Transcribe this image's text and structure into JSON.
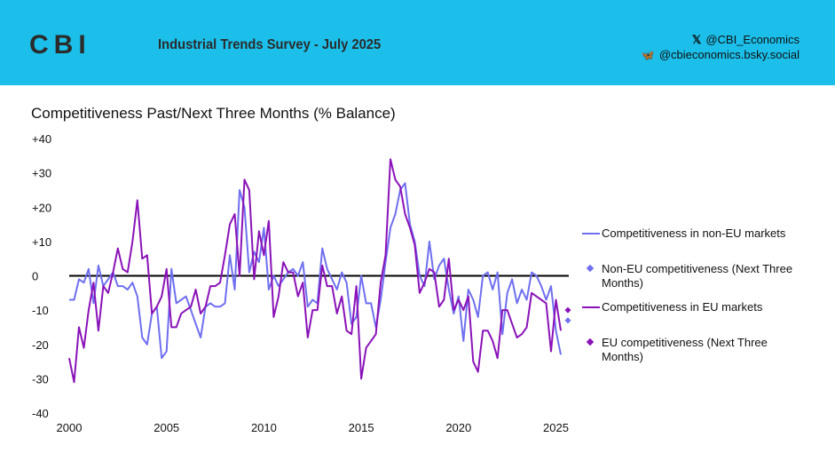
{
  "header": {
    "logo": "CBI",
    "survey_title": "Industrial Trends Survey - July 2025",
    "x_handle": "@CBI_Economics",
    "bsky_handle": "@cbieconomics.bsky.social",
    "x_icon": "𝕏",
    "bsky_icon": "🦋"
  },
  "colors": {
    "header_bg": "#1bbfea",
    "non_eu": "#6f6ff0",
    "eu": "#8a12b8",
    "zero_line": "#000000"
  },
  "chart_data": {
    "type": "line",
    "title": "Competitiveness Past/Next Three Months (% Balance)",
    "xlabel": "",
    "ylabel": "",
    "xlim": [
      2000,
      2026.3
    ],
    "ylim": [
      -40,
      40
    ],
    "x_ticks": [
      "2000",
      "2005",
      "2010",
      "2015",
      "2020",
      "2025"
    ],
    "y_ticks": [
      "+40",
      "+30",
      "+20",
      "+10",
      "0",
      "-10",
      "-20",
      "-30",
      "-40"
    ],
    "start_year": 2000,
    "step": 0.25,
    "series": [
      {
        "name": "Competitiveness in non-EU markets",
        "kind": "line",
        "values": [
          -7,
          -7,
          -1,
          -2,
          2,
          -8,
          3,
          -3,
          -1,
          1,
          -3,
          -3,
          -4,
          -2,
          -6,
          -18,
          -20,
          -11,
          -9,
          -24,
          -22,
          2,
          -8,
          -7,
          -6,
          -10,
          -14,
          -18,
          -9,
          -8,
          -9,
          -9,
          -8,
          6,
          -4,
          25,
          20,
          1,
          7,
          4,
          14,
          -4,
          0,
          -3,
          -1,
          1,
          2,
          0,
          4,
          -9,
          -7,
          -8,
          8,
          2,
          -1,
          -4,
          1,
          -2,
          -14,
          -12,
          0,
          -8,
          -8,
          -15,
          -7,
          4,
          14,
          18,
          25,
          27,
          15,
          10,
          0,
          -3,
          10,
          -1,
          3,
          5,
          -4,
          -11,
          -6,
          -19,
          -4,
          -7,
          -12,
          0,
          1,
          -4,
          1,
          -17,
          -5,
          -1,
          -8,
          -4,
          -7,
          1,
          0,
          -3,
          -7,
          -3,
          -16,
          -23
        ],
        "next": -13
      },
      {
        "name": "Competitiveness in EU markets",
        "kind": "line",
        "values": [
          -24,
          -31,
          -15,
          -21,
          -10,
          -2,
          -16,
          -3,
          -5,
          1,
          8,
          2,
          1,
          10,
          22,
          5,
          6,
          -11,
          -9,
          -6,
          2,
          -15,
          -15,
          -11,
          -10,
          -9,
          -4,
          -11,
          -9,
          -3,
          -3,
          -2,
          6,
          15,
          18,
          0,
          28,
          25,
          -1,
          13,
          6,
          16,
          -12,
          -6,
          4,
          1,
          1,
          -6,
          -2,
          -18,
          -10,
          -10,
          3,
          -3,
          -3,
          -11,
          -6,
          -16,
          -17,
          -3,
          -30,
          -21,
          -19,
          -17,
          -2,
          6,
          34,
          28,
          26,
          18,
          14,
          9,
          -5,
          -2,
          2,
          1,
          -9,
          -7,
          5,
          -10,
          -7,
          -10,
          -6,
          -25,
          -28,
          -16,
          -16,
          -19,
          -24,
          -10,
          -10,
          -14,
          -18,
          -17,
          -15,
          -5,
          -6,
          -7,
          -8,
          -22,
          -7,
          -16
        ],
        "next": -10
      }
    ],
    "legend": [
      {
        "label": "Competitiveness in non-EU markets",
        "type": "line",
        "color": "#6f6ff0"
      },
      {
        "label": "Non-EU competitiveness (Next Three Months)",
        "type": "marker",
        "color": "#6f6ff0"
      },
      {
        "label": "Competitiveness in EU markets",
        "type": "line",
        "color": "#8a12b8"
      },
      {
        "label": "EU competitiveness (Next Three Months)",
        "type": "marker",
        "color": "#8a12b8"
      }
    ],
    "legend_position": "right",
    "grid": false
  }
}
